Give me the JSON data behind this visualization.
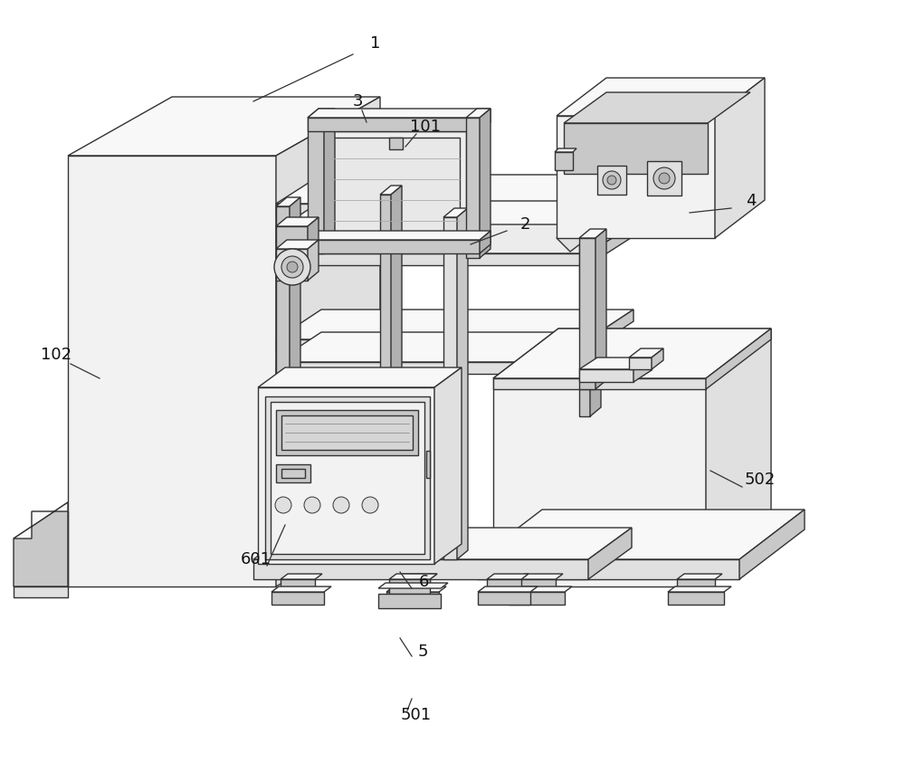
{
  "bg_color": "#ffffff",
  "line_color": "#333333",
  "lw": 1.0,
  "lw_thick": 1.5,
  "fill_white": "#ffffff",
  "fill_light": "#f2f2f2",
  "fill_mid": "#e0e0e0",
  "fill_dark": "#c8c8c8",
  "fill_darker": "#b0b0b0",
  "fill_top": "#f8f8f8"
}
